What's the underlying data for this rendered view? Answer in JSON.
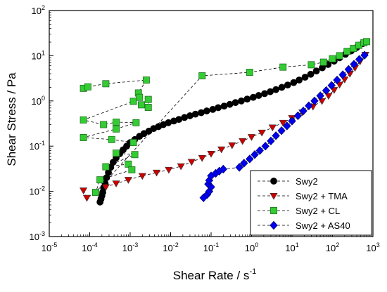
{
  "chart_data": {
    "type": "scatter",
    "title": "",
    "xlabel": "Shear Rate / s",
    "xlabel_sup": "-1",
    "ylabel": "Shear Stress / Pa",
    "xscale": "log",
    "yscale": "log",
    "xlim": [
      1e-05,
      1000
    ],
    "ylim": [
      0.001,
      100
    ],
    "x_ticks": [
      {
        "value": 1e-05,
        "base": "10",
        "exp": "-5"
      },
      {
        "value": 0.0001,
        "base": "10",
        "exp": "-4"
      },
      {
        "value": 0.001,
        "base": "10",
        "exp": "-3"
      },
      {
        "value": 0.01,
        "base": "10",
        "exp": "-2"
      },
      {
        "value": 0.1,
        "base": "10",
        "exp": "-1"
      },
      {
        "value": 1.0,
        "base": "10",
        "exp": "0"
      },
      {
        "value": 10.0,
        "base": "10",
        "exp": "1"
      },
      {
        "value": 100.0,
        "base": "10",
        "exp": "2"
      },
      {
        "value": 1000.0,
        "base": "10",
        "exp": "3"
      }
    ],
    "y_ticks": [
      {
        "value": 0.001,
        "base": "10",
        "exp": "-3"
      },
      {
        "value": 0.01,
        "base": "10",
        "exp": "-2"
      },
      {
        "value": 0.1,
        "base": "10",
        "exp": "-1"
      },
      {
        "value": 1.0,
        "base": "10",
        "exp": "0"
      },
      {
        "value": 10.0,
        "base": "10",
        "exp": "1"
      },
      {
        "value": 100.0,
        "base": "10",
        "exp": "2"
      }
    ],
    "grid": false,
    "legend_position": "bottom-right",
    "series": [
      {
        "name": "Swy2",
        "marker": "circle",
        "color": "#000000",
        "points": [
          [
            0.00018,
            0.0058
          ],
          [
            0.00019,
            0.0068
          ],
          [
            0.0002,
            0.008
          ],
          [
            0.00021,
            0.0095
          ],
          [
            0.00022,
            0.012
          ],
          [
            0.00024,
            0.015
          ],
          [
            0.00026,
            0.02
          ],
          [
            0.00029,
            0.026
          ],
          [
            0.00033,
            0.034
          ],
          [
            0.00038,
            0.044
          ],
          [
            0.00045,
            0.055
          ],
          [
            0.00055,
            0.068
          ],
          [
            0.00067,
            0.083
          ],
          [
            0.00082,
            0.1
          ],
          [
            0.001,
            0.12
          ],
          [
            0.0013,
            0.14
          ],
          [
            0.0017,
            0.165
          ],
          [
            0.0022,
            0.19
          ],
          [
            0.0029,
            0.215
          ],
          [
            0.0038,
            0.245
          ],
          [
            0.005,
            0.27
          ],
          [
            0.0066,
            0.3
          ],
          [
            0.0088,
            0.33
          ],
          [
            0.012,
            0.36
          ],
          [
            0.016,
            0.39
          ],
          [
            0.022,
            0.43
          ],
          [
            0.03,
            0.47
          ],
          [
            0.041,
            0.51
          ],
          [
            0.057,
            0.55
          ],
          [
            0.078,
            0.6
          ],
          [
            0.11,
            0.65
          ],
          [
            0.15,
            0.71
          ],
          [
            0.21,
            0.77
          ],
          [
            0.29,
            0.84
          ],
          [
            0.4,
            0.92
          ],
          [
            0.56,
            1.0
          ],
          [
            0.78,
            1.1
          ],
          [
            1.1,
            1.2
          ],
          [
            1.5,
            1.32
          ],
          [
            2.1,
            1.45
          ],
          [
            2.9,
            1.6
          ],
          [
            4.0,
            1.78
          ],
          [
            5.6,
            2.0
          ],
          [
            7.8,
            2.25
          ],
          [
            11,
            2.55
          ],
          [
            15,
            2.9
          ],
          [
            21,
            3.35
          ],
          [
            29,
            3.9
          ],
          [
            40,
            4.6
          ],
          [
            56,
            5.4
          ],
          [
            78,
            6.4
          ],
          [
            110,
            7.6
          ],
          [
            150,
            9.0
          ],
          [
            210,
            10.8
          ],
          [
            290,
            12.8
          ],
          [
            400,
            15.3
          ],
          [
            560,
            18.5
          ]
        ]
      },
      {
        "name": "Swy2 + TMA",
        "marker": "triangle-down",
        "color": "#cc0000",
        "points": [
          [
            7e-05,
            0.0105
          ],
          [
            8.5e-05,
            0.0072
          ],
          [
            0.00025,
            0.0125
          ],
          [
            0.00045,
            0.015
          ],
          [
            0.0009,
            0.018
          ],
          [
            0.002,
            0.022
          ],
          [
            0.0045,
            0.026
          ],
          [
            0.009,
            0.03
          ],
          [
            0.018,
            0.036
          ],
          [
            0.033,
            0.045
          ],
          [
            0.06,
            0.055
          ],
          [
            0.1,
            0.068
          ],
          [
            0.18,
            0.085
          ],
          [
            0.33,
            0.105
          ],
          [
            0.6,
            0.13
          ],
          [
            1.0,
            0.16
          ],
          [
            1.8,
            0.2
          ],
          [
            3.3,
            0.26
          ],
          [
            6,
            0.33
          ],
          [
            10,
            0.42
          ],
          [
            18,
            0.56
          ],
          [
            33,
            0.75
          ],
          [
            55,
            1.0
          ],
          [
            80,
            1.3
          ],
          [
            110,
            1.75
          ],
          [
            150,
            2.3
          ],
          [
            200,
            3.0
          ],
          [
            270,
            4.0
          ],
          [
            360,
            5.4
          ],
          [
            480,
            7.5
          ],
          [
            650,
            10.5
          ]
        ]
      },
      {
        "name": "Swy2 + CL",
        "marker": "square",
        "color": "#33cc33",
        "points": [
          [
            7e-05,
            1.9
          ],
          [
            9e-05,
            2.05
          ],
          [
            0.00025,
            2.4
          ],
          [
            0.0025,
            2.9
          ],
          [
            0.0016,
            1.5
          ],
          [
            0.0017,
            1.2
          ],
          [
            0.0028,
            1.08
          ],
          [
            0.0028,
            0.72
          ],
          [
            0.0019,
            0.82
          ],
          [
            0.0012,
            0.98
          ],
          [
            7e-05,
            0.38
          ],
          [
            0.00022,
            0.3
          ],
          [
            0.00045,
            0.34
          ],
          [
            0.0014,
            0.33
          ],
          [
            0.00045,
            0.24
          ],
          [
            7e-05,
            0.155
          ],
          [
            0.00035,
            0.14
          ],
          [
            0.0012,
            0.12
          ],
          [
            0.00045,
            0.07
          ],
          [
            0.0013,
            0.065
          ],
          [
            0.00025,
            0.035
          ],
          [
            0.0009,
            0.04
          ],
          [
            0.0011,
            0.03
          ],
          [
            0.00018,
            0.018
          ],
          [
            0.00014,
            0.0095
          ],
          [
            0.06,
            3.6
          ],
          [
            0.9,
            4.3
          ],
          [
            6,
            5.6
          ],
          [
            30,
            6.3
          ],
          [
            60,
            7.2
          ],
          [
            100,
            8.6
          ],
          [
            150,
            10
          ],
          [
            230,
            12.5
          ],
          [
            330,
            14.5
          ],
          [
            450,
            17
          ],
          [
            600,
            19.5
          ],
          [
            700,
            20.5
          ]
        ]
      },
      {
        "name": "Swy2 + AS40",
        "marker": "diamond",
        "color": "#0000ee",
        "points": [
          [
            0.065,
            0.0072
          ],
          [
            0.08,
            0.0085
          ],
          [
            0.09,
            0.01
          ],
          [
            0.1,
            0.0125
          ],
          [
            0.085,
            0.0145
          ],
          [
            0.09,
            0.0175
          ],
          [
            0.1,
            0.022
          ],
          [
            0.13,
            0.025
          ],
          [
            0.16,
            0.028
          ],
          [
            0.2,
            0.031
          ],
          [
            0.5,
            0.034
          ],
          [
            0.65,
            0.042
          ],
          [
            0.9,
            0.052
          ],
          [
            1.2,
            0.065
          ],
          [
            1.6,
            0.08
          ],
          [
            2.2,
            0.1
          ],
          [
            3.0,
            0.13
          ],
          [
            4.0,
            0.17
          ],
          [
            5.5,
            0.22
          ],
          [
            7.5,
            0.28
          ],
          [
            10,
            0.36
          ],
          [
            14,
            0.47
          ],
          [
            19,
            0.6
          ],
          [
            26,
            0.78
          ],
          [
            36,
            1.0
          ],
          [
            50,
            1.3
          ],
          [
            70,
            1.7
          ],
          [
            95,
            2.2
          ],
          [
            130,
            2.9
          ],
          [
            180,
            3.8
          ],
          [
            250,
            5.0
          ],
          [
            340,
            6.5
          ],
          [
            460,
            8.3
          ],
          [
            620,
            10.3
          ]
        ]
      }
    ]
  }
}
